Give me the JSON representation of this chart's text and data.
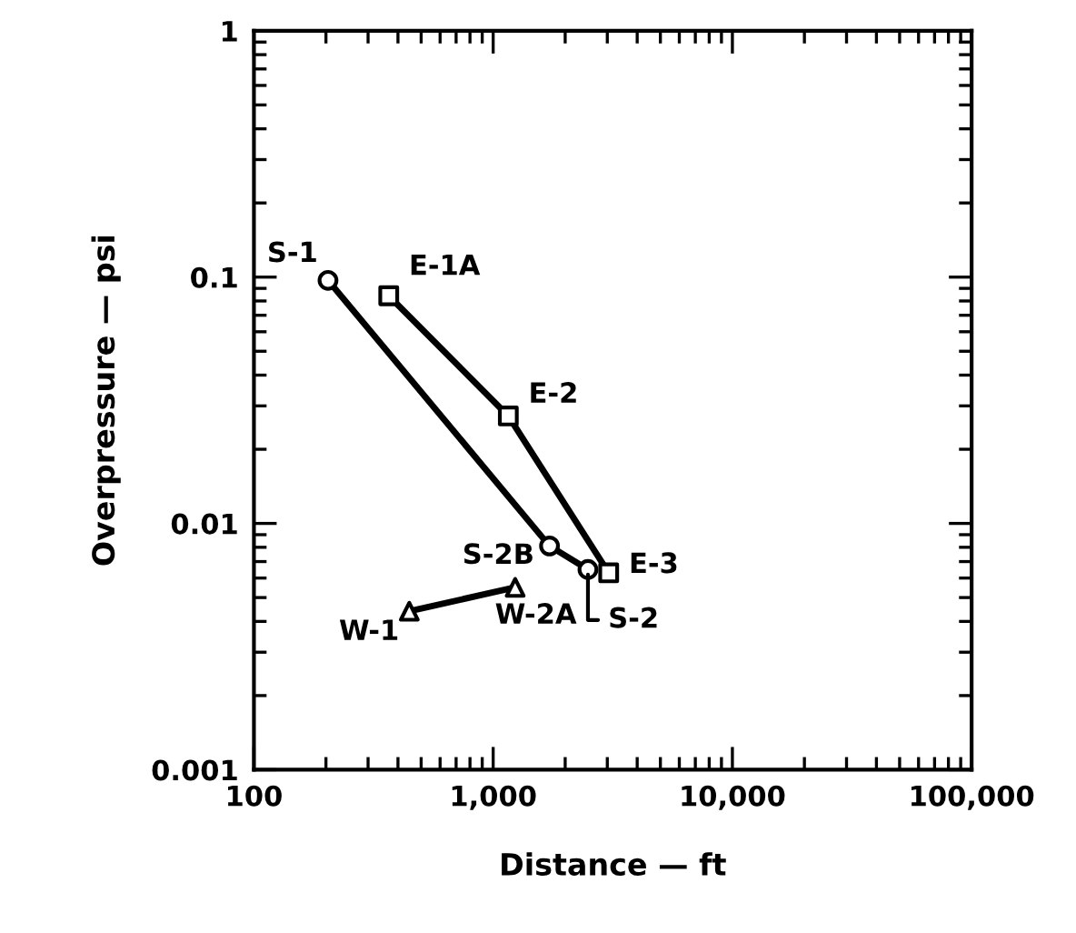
{
  "chart_data": {
    "type": "line",
    "xlabel": "Distance — ft",
    "ylabel": "Overpressure — psi",
    "log": "xy",
    "grid": false,
    "legend": false,
    "line_style": "solid",
    "xlim": [
      100,
      100000
    ],
    "ylim": [
      0.001,
      1
    ],
    "xticks": [
      {
        "value": 100,
        "label": "100"
      },
      {
        "value": 1000,
        "label": "1,000"
      },
      {
        "value": 10000,
        "label": "10,000"
      },
      {
        "value": 100000,
        "label": "100,000"
      }
    ],
    "yticks": [
      0.001,
      0.01,
      0.1,
      1
    ],
    "series": [
      {
        "color": "#000000",
        "marker": "circle",
        "x": [
          204,
          1720,
          2490
        ],
        "values": [
          0.097,
          0.0081,
          0.0065
        ]
      },
      {
        "color": "#000000",
        "marker": "square",
        "x": [
          366,
          1157,
          3040
        ],
        "values": [
          0.084,
          0.0273,
          0.0063
        ]
      },
      {
        "color": "#000000",
        "marker": "triangle",
        "x": [
          446,
          1236
        ],
        "values": [
          0.0044,
          0.0055
        ]
      }
    ],
    "annotations": [
      {
        "text": "S-1",
        "x": 204,
        "y": 0.097
      },
      {
        "text": "E-1A",
        "x": 366,
        "y": 0.084
      },
      {
        "text": "E-2",
        "x": 1157,
        "y": 0.0273
      },
      {
        "text": "S-2B",
        "x": 1720,
        "y": 0.0081
      },
      {
        "text": "E-3",
        "x": 3040,
        "y": 0.0063
      },
      {
        "text": "S-2",
        "x": 2490,
        "y": 0.0065
      },
      {
        "text": "W-1",
        "x": 446,
        "y": 0.0044
      },
      {
        "text": "W-2A",
        "x": 1236,
        "y": 0.0055
      }
    ]
  }
}
